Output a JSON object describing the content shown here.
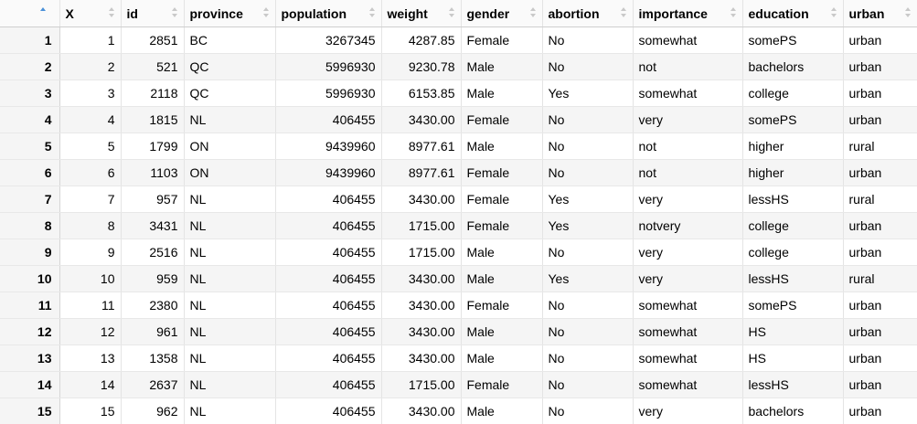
{
  "table": {
    "columns": [
      {
        "label": "",
        "align": "right"
      },
      {
        "label": "X",
        "align": "right"
      },
      {
        "label": "id",
        "align": "right"
      },
      {
        "label": "province",
        "align": "left"
      },
      {
        "label": "population",
        "align": "right"
      },
      {
        "label": "weight",
        "align": "right"
      },
      {
        "label": "gender",
        "align": "left"
      },
      {
        "label": "abortion",
        "align": "left"
      },
      {
        "label": "importance",
        "align": "left"
      },
      {
        "label": "education",
        "align": "left"
      },
      {
        "label": "urban",
        "align": "left"
      }
    ],
    "sorted_column": "X",
    "sort_direction": "ascending",
    "rows": [
      [
        "1",
        "1",
        "2851",
        "BC",
        "3267345",
        "4287.85",
        "Female",
        "No",
        "somewhat",
        "somePS",
        "urban"
      ],
      [
        "2",
        "2",
        "521",
        "QC",
        "5996930",
        "9230.78",
        "Male",
        "No",
        "not",
        "bachelors",
        "urban"
      ],
      [
        "3",
        "3",
        "2118",
        "QC",
        "5996930",
        "6153.85",
        "Male",
        "Yes",
        "somewhat",
        "college",
        "urban"
      ],
      [
        "4",
        "4",
        "1815",
        "NL",
        "406455",
        "3430.00",
        "Female",
        "No",
        "very",
        "somePS",
        "urban"
      ],
      [
        "5",
        "5",
        "1799",
        "ON",
        "9439960",
        "8977.61",
        "Male",
        "No",
        "not",
        "higher",
        "rural"
      ],
      [
        "6",
        "6",
        "1103",
        "ON",
        "9439960",
        "8977.61",
        "Female",
        "No",
        "not",
        "higher",
        "urban"
      ],
      [
        "7",
        "7",
        "957",
        "NL",
        "406455",
        "3430.00",
        "Female",
        "Yes",
        "very",
        "lessHS",
        "rural"
      ],
      [
        "8",
        "8",
        "3431",
        "NL",
        "406455",
        "1715.00",
        "Female",
        "Yes",
        "notvery",
        "college",
        "urban"
      ],
      [
        "9",
        "9",
        "2516",
        "NL",
        "406455",
        "1715.00",
        "Male",
        "No",
        "very",
        "college",
        "urban"
      ],
      [
        "10",
        "10",
        "959",
        "NL",
        "406455",
        "3430.00",
        "Male",
        "Yes",
        "very",
        "lessHS",
        "rural"
      ],
      [
        "11",
        "11",
        "2380",
        "NL",
        "406455",
        "3430.00",
        "Female",
        "No",
        "somewhat",
        "somePS",
        "urban"
      ],
      [
        "12",
        "12",
        "961",
        "NL",
        "406455",
        "3430.00",
        "Male",
        "No",
        "somewhat",
        "HS",
        "urban"
      ],
      [
        "13",
        "13",
        "1358",
        "NL",
        "406455",
        "3430.00",
        "Male",
        "No",
        "somewhat",
        "HS",
        "urban"
      ],
      [
        "14",
        "14",
        "2637",
        "NL",
        "406455",
        "1715.00",
        "Female",
        "No",
        "somewhat",
        "lessHS",
        "urban"
      ],
      [
        "15",
        "15",
        "962",
        "NL",
        "406455",
        "3430.00",
        "Male",
        "No",
        "very",
        "bachelors",
        "urban"
      ]
    ]
  },
  "colors": {
    "sort_active": "#4a90d9",
    "sort_inactive": "#c9c9c9",
    "stripe": "#f5f5f5",
    "grid": "#e4e4e4"
  }
}
